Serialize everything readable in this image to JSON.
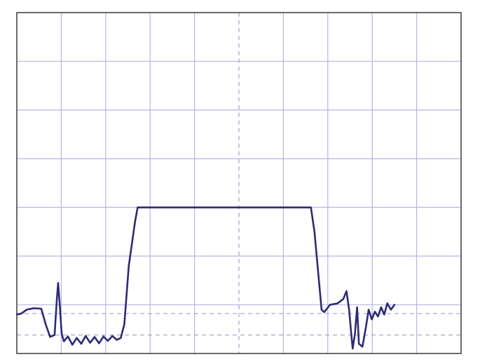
{
  "chart_data": {
    "type": "line",
    "title": "",
    "xlabel": "",
    "ylabel": "",
    "x_divisions": 10,
    "y_divisions": 7,
    "xlim": [
      0,
      10
    ],
    "ylim": [
      0,
      7
    ],
    "grid": true,
    "center_vertical_dashed": true,
    "reference_levels_dashed": [
      0.82,
      0.38
    ],
    "colors": {
      "grid": "#b9b3e2",
      "dashed": "#a49ccf",
      "trace": "#2e2a74",
      "frame": "#3a3a3a",
      "background": "#ffffff"
    },
    "series": [
      {
        "values": [
          [
            0.0,
            0.8
          ],
          [
            0.1,
            0.82
          ],
          [
            0.22,
            0.9
          ],
          [
            0.38,
            0.93
          ],
          [
            0.55,
            0.92
          ],
          [
            0.65,
            0.6
          ],
          [
            0.75,
            0.34
          ],
          [
            0.85,
            0.38
          ],
          [
            0.9,
            1.1
          ],
          [
            0.93,
            1.45
          ],
          [
            0.97,
            0.95
          ],
          [
            1.01,
            0.4
          ],
          [
            1.06,
            0.25
          ],
          [
            1.15,
            0.35
          ],
          [
            1.25,
            0.18
          ],
          [
            1.35,
            0.32
          ],
          [
            1.45,
            0.2
          ],
          [
            1.55,
            0.36
          ],
          [
            1.65,
            0.22
          ],
          [
            1.75,
            0.34
          ],
          [
            1.85,
            0.21
          ],
          [
            1.95,
            0.35
          ],
          [
            2.05,
            0.26
          ],
          [
            2.15,
            0.36
          ],
          [
            2.25,
            0.28
          ],
          [
            2.34,
            0.32
          ],
          [
            2.42,
            0.6
          ],
          [
            2.52,
            1.8
          ],
          [
            2.66,
            2.7
          ],
          [
            2.72,
            3.0
          ],
          [
            3.2,
            3.0
          ],
          [
            4.0,
            3.0
          ],
          [
            5.0,
            3.0
          ],
          [
            6.0,
            3.0
          ],
          [
            6.62,
            3.0
          ],
          [
            6.7,
            2.5
          ],
          [
            6.8,
            1.5
          ],
          [
            6.86,
            0.9
          ],
          [
            6.92,
            0.85
          ],
          [
            7.05,
            1.0
          ],
          [
            7.22,
            1.03
          ],
          [
            7.35,
            1.12
          ],
          [
            7.42,
            1.28
          ],
          [
            7.48,
            0.9
          ],
          [
            7.52,
            0.48
          ],
          [
            7.56,
            0.1
          ],
          [
            7.61,
            0.4
          ],
          [
            7.66,
            0.95
          ],
          [
            7.7,
            0.2
          ],
          [
            7.78,
            0.14
          ],
          [
            7.85,
            0.5
          ],
          [
            7.92,
            0.9
          ],
          [
            7.99,
            0.7
          ],
          [
            8.06,
            0.86
          ],
          [
            8.13,
            0.76
          ],
          [
            8.2,
            0.95
          ],
          [
            8.27,
            0.8
          ],
          [
            8.34,
            1.03
          ],
          [
            8.42,
            0.9
          ],
          [
            8.5,
            1.0
          ]
        ]
      }
    ]
  }
}
